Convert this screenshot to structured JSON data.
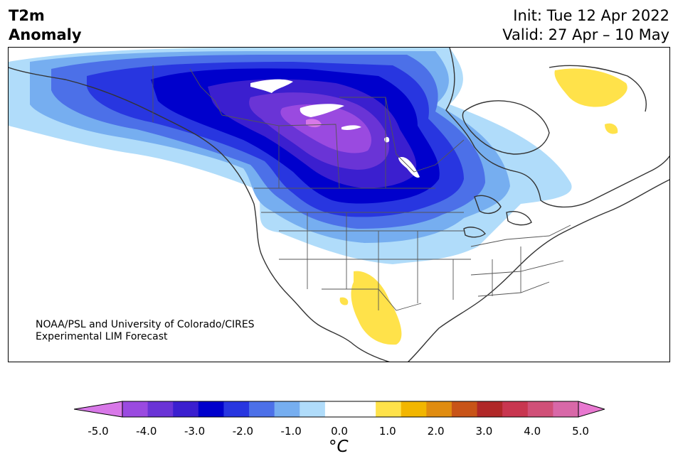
{
  "header": {
    "title_line1": "T2m",
    "title_line2": "Anomaly",
    "init": "Init: Tue 12 Apr 2022",
    "valid": "Valid: 27 Apr – 10 May"
  },
  "map": {
    "credit_line1": "NOAA/PSL and University of Colorado/CIRES",
    "credit_line2": "Experimental LIM Forecast",
    "region": "North America",
    "max_cold_anomaly_region": "Central Canada / Northern Plains",
    "warm_anomaly_regions": [
      "Southwest US / Northern Mexico",
      "Northeast Canada / Labrador"
    ]
  },
  "colorbar": {
    "unit_label": "°C",
    "tick_labels": [
      "-5.0",
      "-4.0",
      "-3.0",
      "-2.0",
      "-1.0",
      "0.0",
      "1.0",
      "2.0",
      "3.0",
      "4.0",
      "5.0"
    ],
    "extend": "both",
    "colors": [
      "#d878e8",
      "#9a4ae0",
      "#6a34d6",
      "#3b1fcf",
      "#0000cc",
      "#2836e0",
      "#4c70e8",
      "#76aef0",
      "#b0dcfa",
      "#ffffff",
      "#ffffff",
      "#ffe24a",
      "#f2b600",
      "#e08c10",
      "#c85418",
      "#b02828",
      "#c83650",
      "#d05078",
      "#d868a8",
      "#e878d0"
    ]
  }
}
